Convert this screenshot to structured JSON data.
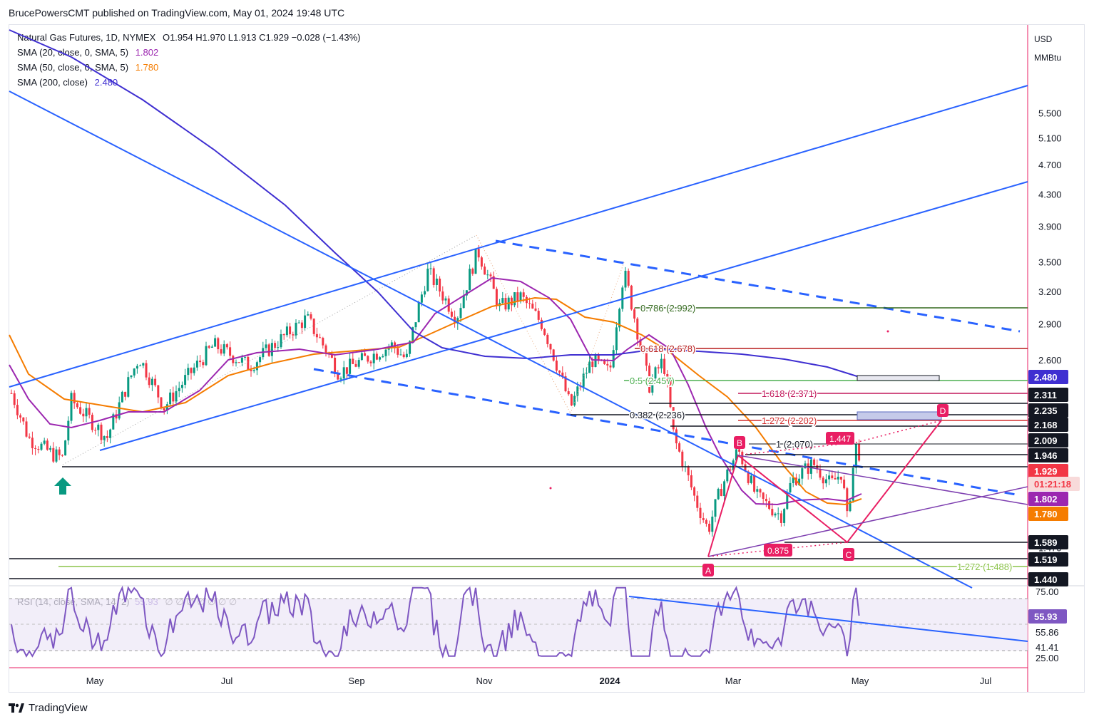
{
  "header": {
    "publisher": "BrucePowersCMT published on TradingView.com, May 01, 2024 19:48 UTC"
  },
  "legend": {
    "symbol": "Natural Gas Futures, 1D, NYMEX",
    "ohlc": "O1.954  H1.970  L1.913  C1.929  −0.028 (−1.43%)",
    "sma20_label": "SMA (20, close, 0, SMA, 5)",
    "sma20_value": "1.802",
    "sma50_label": "SMA (50, close, 0, SMA, 5)",
    "sma50_value": "1.780",
    "sma200_label": "SMA (200, close)",
    "sma200_value": "2.480"
  },
  "currency": {
    "unit": "USD",
    "sub": "MMBtu"
  },
  "rsi": {
    "label": "RSI (14, close, SMA, 14, 2)",
    "value": "55.93",
    "trail": "∅ ∅ ∅ ∅ ∅ ∅ ∅",
    "ticks": [
      "75.00",
      "55.86",
      "41.41",
      "25.00"
    ],
    "current": "55.93"
  },
  "footer": {
    "brand": "TradingView"
  },
  "colors": {
    "up": "#089981",
    "down": "#f23645",
    "sma20": "#9c27b0",
    "sma50": "#f57c00",
    "sma200": "#3f2fd1",
    "trend": "#2962ff",
    "pattern": "#e91e63"
  },
  "chart_data": {
    "type": "candlestick",
    "instrument": "Natural Gas Futures",
    "timeframe": "1D",
    "ohlc_last": {
      "open": 1.954,
      "high": 1.97,
      "low": 1.913,
      "close": 1.929,
      "change": -0.028,
      "change_pct": -1.43
    },
    "x_ticks": [
      "May",
      "Jul",
      "Sep",
      "Nov",
      "2024",
      "Mar",
      "May",
      "Jul"
    ],
    "y_ticks": [
      5.5,
      5.1,
      4.7,
      4.3,
      3.9,
      3.5,
      3.2,
      2.9,
      2.6,
      1.47
    ],
    "y_scale": "log",
    "price_tags": [
      {
        "label": "2.480",
        "value": 2.48,
        "color": "#3f2fd1"
      },
      {
        "label": "2.311",
        "value": 2.311,
        "color": "#131722"
      },
      {
        "label": "2.235",
        "value": 2.235,
        "color": "#131722"
      },
      {
        "label": "2.168",
        "value": 2.168,
        "color": "#131722"
      },
      {
        "label": "2.009",
        "value": 2.009,
        "color": "#131722"
      },
      {
        "label": "1.946",
        "value": 1.946,
        "color": "#131722"
      },
      {
        "label": "1.929",
        "value": 1.929,
        "color": "#f23645"
      },
      {
        "label": "01:21:18",
        "value": 1.885,
        "color": "#f23645"
      },
      {
        "label": "1.802",
        "value": 1.802,
        "color": "#9c27b0"
      },
      {
        "label": "1.780",
        "value": 1.78,
        "color": "#f57c00"
      },
      {
        "label": "1.589",
        "value": 1.589,
        "color": "#131722"
      },
      {
        "label": "1.519",
        "value": 1.519,
        "color": "#131722"
      },
      {
        "label": "1.440",
        "value": 1.44,
        "color": "#131722"
      }
    ],
    "fib_levels": [
      {
        "label": "0.786 (2.992)",
        "value": 2.992,
        "color": "#33691e"
      },
      {
        "label": "0.618 (2.678)",
        "value": 2.678,
        "color": "#b71c1c"
      },
      {
        "label": "0.5 (2.457)",
        "value": 2.457,
        "color": "#4caf50"
      },
      {
        "label": "0.382 (2.236)",
        "value": 2.236,
        "color": "#131722"
      },
      {
        "label": "1.618 (2.371)",
        "value": 2.371,
        "color": "#c2185b"
      },
      {
        "label": "1.272 (2.202)",
        "value": 2.202,
        "color": "#d32f2f"
      },
      {
        "label": "1 (2.070)",
        "value": 2.07,
        "color": "#131722"
      },
      {
        "label": "1.272 (1.488)",
        "value": 1.488,
        "color": "#8bc34a"
      }
    ],
    "abcd_points": [
      {
        "label": "A",
        "value": 1.519
      },
      {
        "label": "B",
        "value": 2.009
      },
      {
        "label": "C",
        "value": 1.589
      },
      {
        "label": "D",
        "value": 2.235
      }
    ],
    "ratio_labels": [
      "1.447",
      "0.875"
    ]
  }
}
